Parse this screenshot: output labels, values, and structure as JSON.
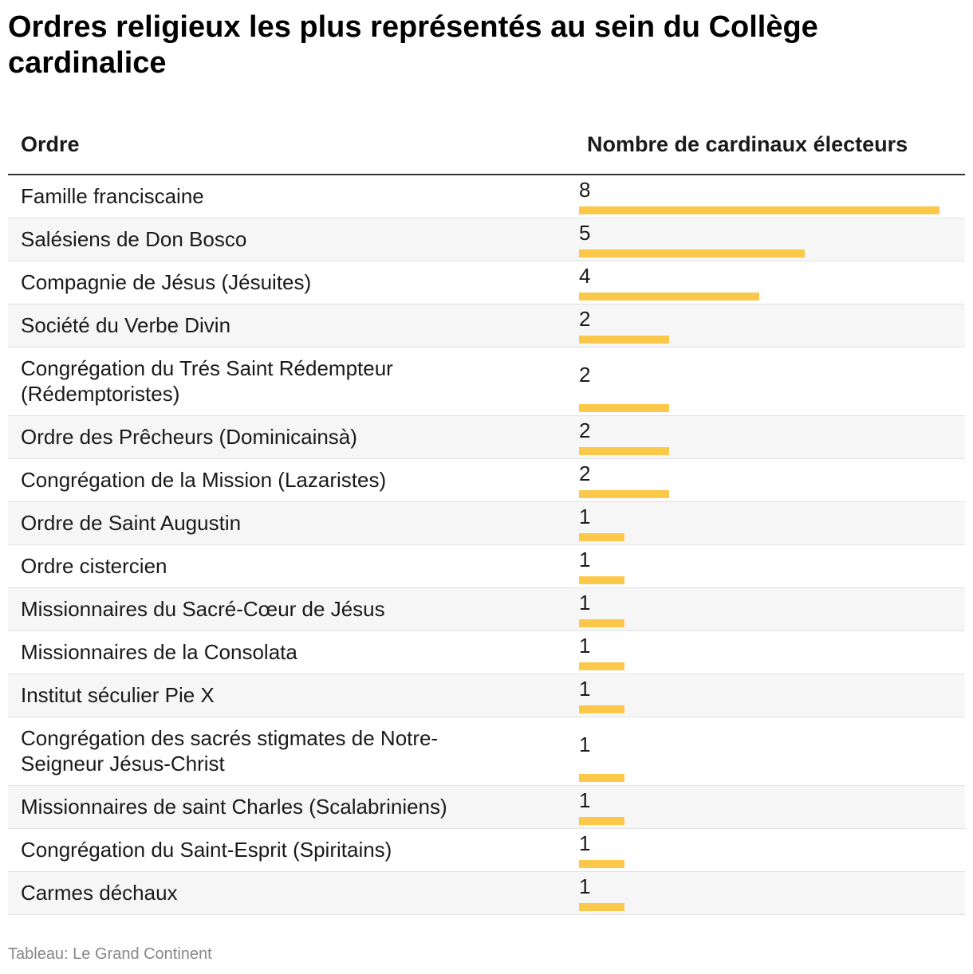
{
  "title": "Ordres religieux les plus représentés au sein du Collège cardinalice",
  "source": "Tableau: Le Grand Continent",
  "colors": {
    "bar": "#fcc84a",
    "header_rule": "#333333",
    "row_alt": "#f6f6f6"
  },
  "chart_data": {
    "type": "table",
    "columns": [
      "Ordre",
      "Nombre de cardinaux électeurs"
    ],
    "rows": [
      {
        "ordre": "Famille franciscaine",
        "value": 8
      },
      {
        "ordre": "Salésiens de Don Bosco",
        "value": 5
      },
      {
        "ordre": "Compagnie de Jésus (Jésuites)",
        "value": 4
      },
      {
        "ordre": "Société du Verbe Divin",
        "value": 2
      },
      {
        "ordre": "Congrégation du Trés Saint Rédempteur (Rédemptoristes)",
        "value": 2
      },
      {
        "ordre": "Ordre des Prêcheurs (Dominicainsà)",
        "value": 2
      },
      {
        "ordre": "Congrégation de la Mission (Lazaristes)",
        "value": 2
      },
      {
        "ordre": "Ordre de Saint Augustin",
        "value": 1
      },
      {
        "ordre": "Ordre cistercien",
        "value": 1
      },
      {
        "ordre": "Missionnaires du Sacré-Cœur de Jésus",
        "value": 1
      },
      {
        "ordre": "Missionnaires de la Consolata",
        "value": 1
      },
      {
        "ordre": "Institut séculier Pie X",
        "value": 1
      },
      {
        "ordre": "Congrégation des sacrés stigmates de Notre-Seigneur Jésus-Christ",
        "value": 1
      },
      {
        "ordre": "Missionnaires de saint Charles (Scalabriniens)",
        "value": 1
      },
      {
        "ordre": "Congrégation du Saint-Esprit (Spiritains)",
        "value": 1
      },
      {
        "ordre": "Carmes déchaux",
        "value": 1
      }
    ],
    "max": 8
  }
}
